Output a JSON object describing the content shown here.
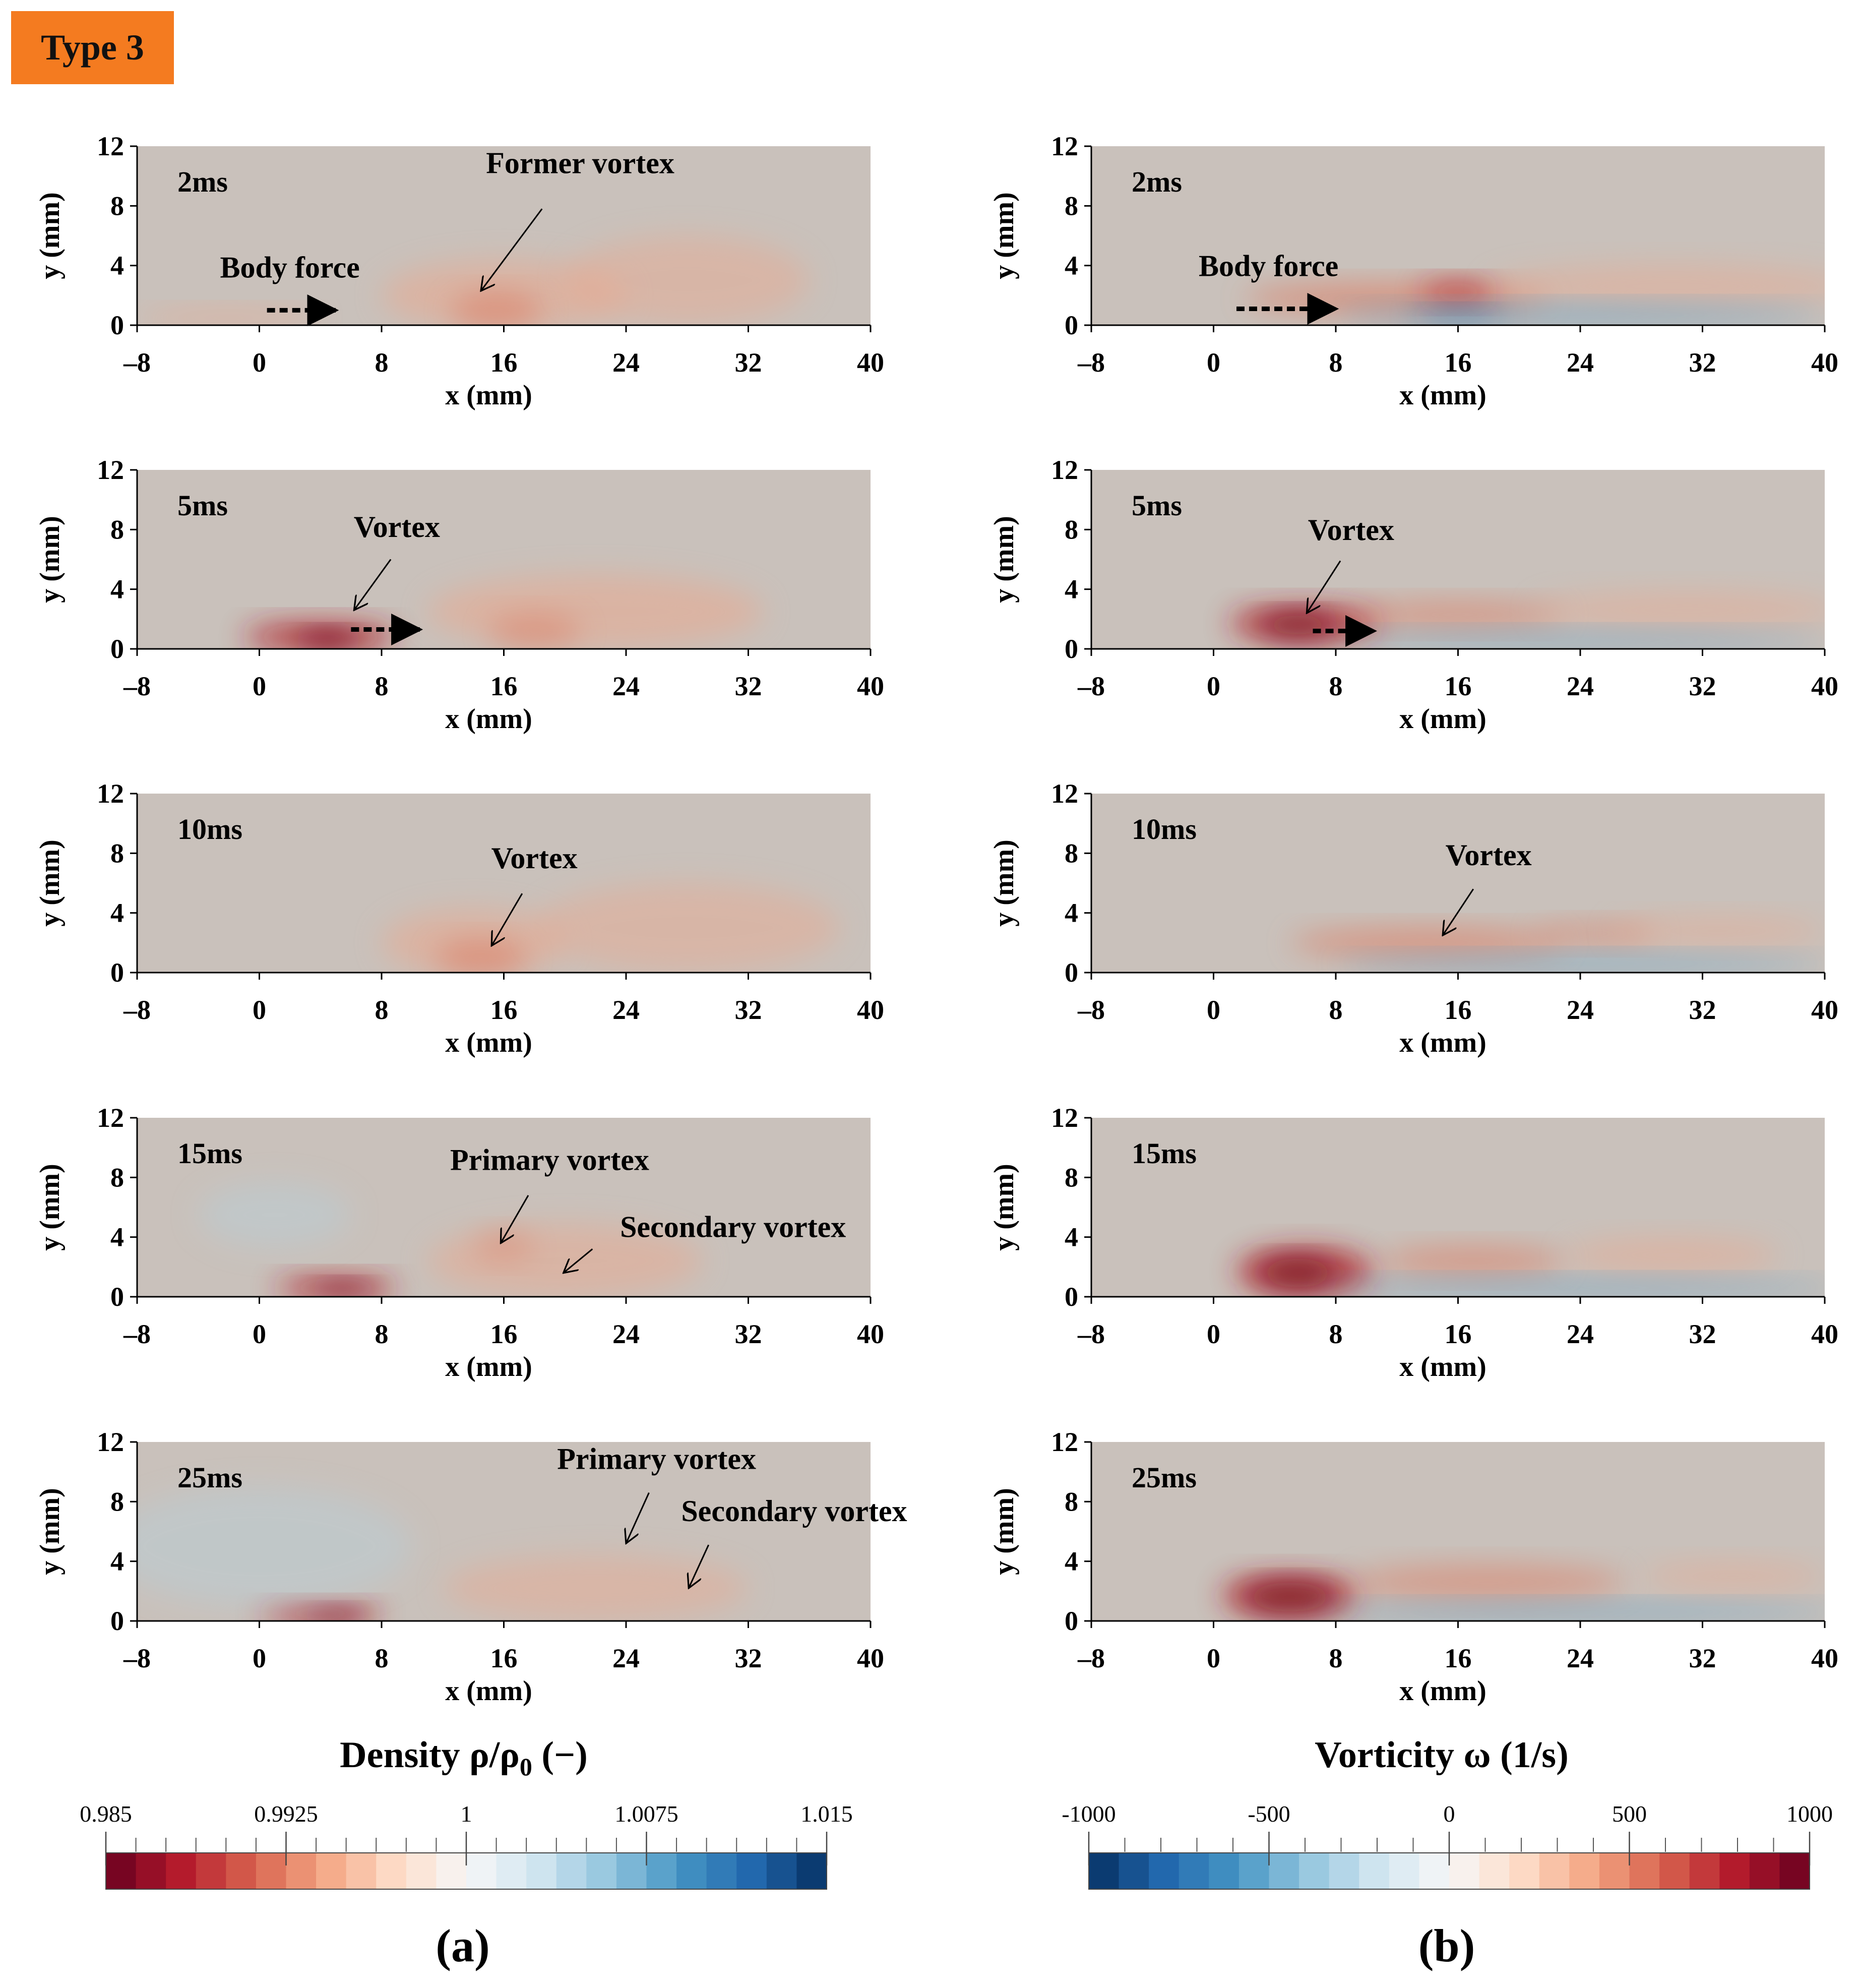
{
  "figure": {
    "type_badge": "Type 3",
    "panel_labels": [
      "(a)",
      "(b)"
    ],
    "column_titles": {
      "density": {
        "main": "Density ρ/ρ",
        "sub": "0",
        "tail": " (−)"
      },
      "vorticity": "Vorticity ω (1/s)"
    }
  },
  "colors": {
    "neutral": "#c9c1bb",
    "light_red": "#e6aa93",
    "mid_red": "#dc7f66",
    "dark_red": "#b01a28",
    "deep_red": "#6e0a1c",
    "light_blue": "#b9cdd6",
    "mid_blue": "#5a9ec8",
    "dark_blue": "#1d6fae"
  },
  "chart_data": [
    {
      "type": "heatmap",
      "column": "density",
      "time_label": "2ms",
      "xlabel": "x (mm)",
      "ylabel": "y (mm)",
      "xlim": [
        -8,
        40
      ],
      "ylim": [
        0,
        12
      ],
      "xticks": [
        -8,
        0,
        8,
        16,
        24,
        32,
        40
      ],
      "yticks": [
        0,
        4,
        8,
        12
      ],
      "annotations": [
        {
          "text": "Former vortex",
          "label_at": [
            21,
            10.2
          ],
          "arrow_from": [
            18.5,
            7.8
          ],
          "arrow_to": [
            14.5,
            2.3
          ]
        },
        {
          "text": "Body force",
          "label_at": [
            2,
            3.2
          ],
          "dotted_arrow_from": [
            0.5,
            1.0
          ],
          "dotted_arrow_to": [
            5,
            1.0
          ]
        }
      ],
      "blobs": [
        {
          "cx": 16,
          "cy": 2.0,
          "rx": 8,
          "ry": 2.4,
          "c": "light_red",
          "o": 0.6
        },
        {
          "cx": 15.5,
          "cy": 1.0,
          "rx": 3,
          "ry": 1.2,
          "c": "mid_red",
          "o": 0.6
        },
        {
          "cx": 28,
          "cy": 3.0,
          "rx": 8,
          "ry": 3.0,
          "c": "light_red",
          "o": 0.5
        },
        {
          "cx": -2,
          "cy": 0.5,
          "rx": 6,
          "ry": 0.6,
          "c": "light_red",
          "o": 0.6
        }
      ]
    },
    {
      "type": "heatmap",
      "column": "vorticity",
      "time_label": "2ms",
      "xlabel": "x (mm)",
      "ylabel": "y (mm)",
      "xlim": [
        -8,
        40
      ],
      "ylim": [
        0,
        12
      ],
      "xticks": [
        -8,
        0,
        8,
        16,
        24,
        32,
        40
      ],
      "yticks": [
        0,
        4,
        8,
        12
      ],
      "annotations": [
        {
          "text": "Body force",
          "label_at": [
            3.6,
            3.3
          ],
          "dotted_arrow_from": [
            1.5,
            1.1
          ],
          "dotted_arrow_to": [
            8,
            1.1
          ]
        }
      ],
      "blobs": [
        {
          "cx": 12,
          "cy": 1.8,
          "rx": 10,
          "ry": 1.0,
          "c": "mid_red",
          "o": 0.7
        },
        {
          "cx": 16,
          "cy": 2.2,
          "rx": 2.5,
          "ry": 0.8,
          "c": "dark_red",
          "o": 0.6
        },
        {
          "cx": 30,
          "cy": 2.6,
          "rx": 12,
          "ry": 1.5,
          "c": "light_red",
          "o": 0.5
        },
        {
          "cx": 24,
          "cy": 0.7,
          "rx": 16,
          "ry": 0.7,
          "c": "mid_blue",
          "o": 0.55
        },
        {
          "cx": 16,
          "cy": 0.6,
          "rx": 3,
          "ry": 0.5,
          "c": "dark_blue",
          "o": 0.5
        }
      ]
    },
    {
      "type": "heatmap",
      "column": "density",
      "time_label": "5ms",
      "xlabel": "x (mm)",
      "ylabel": "y (mm)",
      "xlim": [
        -8,
        40
      ],
      "ylim": [
        0,
        12
      ],
      "xticks": [
        -8,
        0,
        8,
        16,
        24,
        32,
        40
      ],
      "yticks": [
        0,
        4,
        8,
        12
      ],
      "annotations": [
        {
          "text": "Vortex",
          "label_at": [
            9,
            7.5
          ],
          "arrow_from": [
            8.6,
            6.0
          ],
          "arrow_to": [
            6.2,
            2.6
          ]
        },
        {
          "text": "",
          "label_at": [
            0,
            0
          ],
          "dotted_arrow_from": [
            6,
            1.3
          ],
          "dotted_arrow_to": [
            10.5,
            1.3
          ]
        }
      ],
      "blobs": [
        {
          "cx": 4,
          "cy": 0.8,
          "rx": 5,
          "ry": 1.0,
          "c": "dark_red",
          "o": 0.75
        },
        {
          "cx": 4.5,
          "cy": 0.6,
          "rx": 2,
          "ry": 0.6,
          "c": "deep_red",
          "o": 0.8
        },
        {
          "cx": 22,
          "cy": 2.5,
          "rx": 11,
          "ry": 2.5,
          "c": "light_red",
          "o": 0.6
        },
        {
          "cx": 18,
          "cy": 1.2,
          "rx": 3,
          "ry": 1.2,
          "c": "mid_red",
          "o": 0.5
        }
      ]
    },
    {
      "type": "heatmap",
      "column": "vorticity",
      "time_label": "5ms",
      "xlabel": "x (mm)",
      "ylabel": "y (mm)",
      "xlim": [
        -8,
        40
      ],
      "ylim": [
        0,
        12
      ],
      "xticks": [
        -8,
        0,
        8,
        16,
        24,
        32,
        40
      ],
      "yticks": [
        0,
        4,
        8,
        12
      ],
      "annotations": [
        {
          "text": "Vortex",
          "label_at": [
            9,
            7.3
          ],
          "arrow_from": [
            8.3,
            5.9
          ],
          "arrow_to": [
            6.1,
            2.4
          ]
        },
        {
          "text": "",
          "label_at": [
            0,
            0
          ],
          "dotted_arrow_from": [
            6.5,
            1.2
          ],
          "dotted_arrow_to": [
            10.5,
            1.2
          ]
        }
      ],
      "blobs": [
        {
          "cx": 6,
          "cy": 1.7,
          "rx": 5,
          "ry": 1.2,
          "c": "dark_red",
          "o": 0.75
        },
        {
          "cx": 5.5,
          "cy": 1.6,
          "rx": 2.5,
          "ry": 0.8,
          "c": "deep_red",
          "o": 0.7
        },
        {
          "cx": 16,
          "cy": 2.3,
          "rx": 7,
          "ry": 0.9,
          "c": "mid_red",
          "o": 0.6
        },
        {
          "cx": 31,
          "cy": 2.6,
          "rx": 10,
          "ry": 1.3,
          "c": "light_red",
          "o": 0.5
        },
        {
          "cx": 24,
          "cy": 0.6,
          "rx": 16,
          "ry": 0.6,
          "c": "mid_blue",
          "o": 0.5
        }
      ]
    },
    {
      "type": "heatmap",
      "column": "density",
      "time_label": "10ms",
      "xlabel": "x (mm)",
      "ylabel": "y (mm)",
      "xlim": [
        -8,
        40
      ],
      "ylim": [
        0,
        12
      ],
      "xticks": [
        -8,
        0,
        8,
        16,
        24,
        32,
        40
      ],
      "yticks": [
        0,
        4,
        8,
        12
      ],
      "annotations": [
        {
          "text": "Vortex",
          "label_at": [
            18,
            7.0
          ],
          "arrow_from": [
            17.2,
            5.3
          ],
          "arrow_to": [
            15.2,
            1.8
          ]
        }
      ],
      "blobs": [
        {
          "cx": 14,
          "cy": 2.0,
          "rx": 6,
          "ry": 2.3,
          "c": "light_red",
          "o": 0.6
        },
        {
          "cx": 14.5,
          "cy": 1.0,
          "rx": 3,
          "ry": 1.2,
          "c": "mid_red",
          "o": 0.6
        },
        {
          "cx": 28,
          "cy": 3.0,
          "rx": 10,
          "ry": 3.0,
          "c": "light_red",
          "o": 0.5
        }
      ]
    },
    {
      "type": "heatmap",
      "column": "vorticity",
      "time_label": "10ms",
      "xlabel": "x (mm)",
      "ylabel": "y (mm)",
      "xlim": [
        -8,
        40
      ],
      "ylim": [
        0,
        12
      ],
      "xticks": [
        -8,
        0,
        8,
        16,
        24,
        32,
        40
      ],
      "yticks": [
        0,
        4,
        8,
        12
      ],
      "annotations": [
        {
          "text": "Vortex",
          "label_at": [
            18,
            7.2
          ],
          "arrow_from": [
            17,
            5.6
          ],
          "arrow_to": [
            15,
            2.5
          ]
        }
      ],
      "blobs": [
        {
          "cx": 14,
          "cy": 2.0,
          "rx": 9,
          "ry": 1.0,
          "c": "mid_red",
          "o": 0.65
        },
        {
          "cx": 25,
          "cy": 2.6,
          "rx": 4,
          "ry": 0.8,
          "c": "mid_red",
          "o": 0.5
        },
        {
          "cx": 33,
          "cy": 2.8,
          "rx": 7,
          "ry": 1.0,
          "c": "light_red",
          "o": 0.5
        },
        {
          "cx": 24,
          "cy": 0.6,
          "rx": 16,
          "ry": 0.6,
          "c": "mid_blue",
          "o": 0.55
        }
      ]
    },
    {
      "type": "heatmap",
      "column": "density",
      "time_label": "15ms",
      "xlabel": "x (mm)",
      "ylabel": "y (mm)",
      "xlim": [
        -8,
        40
      ],
      "ylim": [
        0,
        12
      ],
      "xticks": [
        -8,
        0,
        8,
        16,
        24,
        32,
        40
      ],
      "yticks": [
        0,
        4,
        8,
        12
      ],
      "annotations": [
        {
          "text": "Primary vortex",
          "label_at": [
            19,
            8.5
          ],
          "arrow_from": [
            17.6,
            6.8
          ],
          "arrow_to": [
            15.8,
            3.6
          ]
        },
        {
          "text": "Secondary vortex",
          "label_at": [
            31,
            4.0
          ],
          "arrow_from": [
            21.8,
            3.2
          ],
          "arrow_to": [
            19.9,
            1.6
          ]
        }
      ],
      "blobs": [
        {
          "cx": 5,
          "cy": 0.6,
          "rx": 4,
          "ry": 0.8,
          "c": "dark_red",
          "o": 0.7
        },
        {
          "cx": 5.5,
          "cy": 0.5,
          "rx": 2,
          "ry": 0.5,
          "c": "deep_red",
          "o": 0.6
        },
        {
          "cx": 20,
          "cy": 2.4,
          "rx": 9,
          "ry": 2.5,
          "c": "light_red",
          "o": 0.55
        },
        {
          "cx": 16,
          "cy": 3.4,
          "rx": 2,
          "ry": 1.0,
          "c": "mid_red",
          "o": 0.4
        },
        {
          "cx": 1,
          "cy": 5.5,
          "rx": 5,
          "ry": 2.2,
          "c": "light_blue",
          "o": 0.5
        }
      ]
    },
    {
      "type": "heatmap",
      "column": "vorticity",
      "time_label": "15ms",
      "xlabel": "x (mm)",
      "ylabel": "y (mm)",
      "xlim": [
        -8,
        40
      ],
      "ylim": [
        0,
        12
      ],
      "xticks": [
        -8,
        0,
        8,
        16,
        24,
        32,
        40
      ],
      "yticks": [
        0,
        4,
        8,
        12
      ],
      "annotations": [],
      "blobs": [
        {
          "cx": 6,
          "cy": 1.7,
          "rx": 4.5,
          "ry": 1.6,
          "c": "dark_red",
          "o": 0.75
        },
        {
          "cx": 5.5,
          "cy": 1.6,
          "rx": 2.5,
          "ry": 1.0,
          "c": "deep_red",
          "o": 0.7
        },
        {
          "cx": 17,
          "cy": 2.4,
          "rx": 6,
          "ry": 1.0,
          "c": "mid_red",
          "o": 0.6
        },
        {
          "cx": 30,
          "cy": 2.8,
          "rx": 7,
          "ry": 1.2,
          "c": "light_red",
          "o": 0.55
        },
        {
          "cx": 24,
          "cy": 0.6,
          "rx": 17,
          "ry": 0.6,
          "c": "mid_blue",
          "o": 0.55
        }
      ]
    },
    {
      "type": "heatmap",
      "column": "density",
      "time_label": "25ms",
      "xlabel": "x (mm)",
      "ylabel": "y (mm)",
      "xlim": [
        -8,
        40
      ],
      "ylim": [
        0,
        12
      ],
      "xticks": [
        -8,
        0,
        8,
        16,
        24,
        32,
        40
      ],
      "yticks": [
        0,
        4,
        8,
        12
      ],
      "annotations": [
        {
          "text": "Primary vortex",
          "label_at": [
            26,
            10.2
          ],
          "arrow_from": [
            25.5,
            8.6
          ],
          "arrow_to": [
            24,
            5.2
          ]
        },
        {
          "text": "Secondary vortex",
          "label_at": [
            35,
            6.7
          ],
          "arrow_from": [
            29.4,
            5.1
          ],
          "arrow_to": [
            28.1,
            2.2
          ]
        }
      ],
      "blobs": [
        {
          "cx": 4,
          "cy": 0.5,
          "rx": 4,
          "ry": 0.7,
          "c": "dark_red",
          "o": 0.7
        },
        {
          "cx": 5,
          "cy": 0.4,
          "rx": 2,
          "ry": 0.5,
          "c": "deep_red",
          "o": 0.6
        },
        {
          "cx": 0,
          "cy": 5.0,
          "rx": 10,
          "ry": 4.0,
          "c": "light_blue",
          "o": 0.5
        },
        {
          "cx": 22,
          "cy": 2.2,
          "rx": 10,
          "ry": 2.2,
          "c": "light_red",
          "o": 0.5
        }
      ]
    },
    {
      "type": "heatmap",
      "column": "vorticity",
      "time_label": "25ms",
      "xlabel": "x (mm)",
      "ylabel": "y (mm)",
      "xlim": [
        -8,
        40
      ],
      "ylim": [
        0,
        12
      ],
      "xticks": [
        -8,
        0,
        8,
        16,
        24,
        32,
        40
      ],
      "yticks": [
        0,
        4,
        8,
        12
      ],
      "annotations": [],
      "blobs": [
        {
          "cx": 5,
          "cy": 1.7,
          "rx": 4.5,
          "ry": 1.4,
          "c": "dark_red",
          "o": 0.75
        },
        {
          "cx": 5,
          "cy": 1.6,
          "rx": 3,
          "ry": 1.0,
          "c": "deep_red",
          "o": 0.7
        },
        {
          "cx": 18,
          "cy": 2.6,
          "rx": 9,
          "ry": 1.2,
          "c": "mid_red",
          "o": 0.55
        },
        {
          "cx": 34,
          "cy": 3.0,
          "rx": 6,
          "ry": 1.0,
          "c": "light_red",
          "o": 0.5
        },
        {
          "cx": 24,
          "cy": 0.6,
          "rx": 17,
          "ry": 0.6,
          "c": "mid_blue",
          "o": 0.55
        }
      ]
    },
    {
      "type": "colorbar",
      "column": "density",
      "range": [
        0.985,
        1.015
      ],
      "tick_values": [
        0.985,
        0.9925,
        1,
        1.0075,
        1.015
      ],
      "tick_labels": [
        "0.985",
        "0.9925",
        "1",
        "1.0075",
        "1.015"
      ],
      "minor_step": 0.00125,
      "levels": 24,
      "colors": [
        "#67001f",
        "#b2182b",
        "#d6604d",
        "#f4a582",
        "#fddbc7",
        "#f7f7f7",
        "#d1e5f0",
        "#92c5de",
        "#4393c3",
        "#2166ac",
        "#053061"
      ]
    },
    {
      "type": "colorbar",
      "column": "vorticity",
      "range": [
        -1000,
        1000
      ],
      "tick_values": [
        -1000,
        -500,
        0,
        500,
        1000
      ],
      "tick_labels": [
        "-1000",
        "-500",
        "0",
        "500",
        "1000"
      ],
      "minor_step": 100,
      "levels": 24,
      "colors": [
        "#053061",
        "#2166ac",
        "#4393c3",
        "#92c5de",
        "#d1e5f0",
        "#f7f7f7",
        "#fddbc7",
        "#f4a582",
        "#d6604d",
        "#b2182b",
        "#67001f"
      ]
    }
  ]
}
